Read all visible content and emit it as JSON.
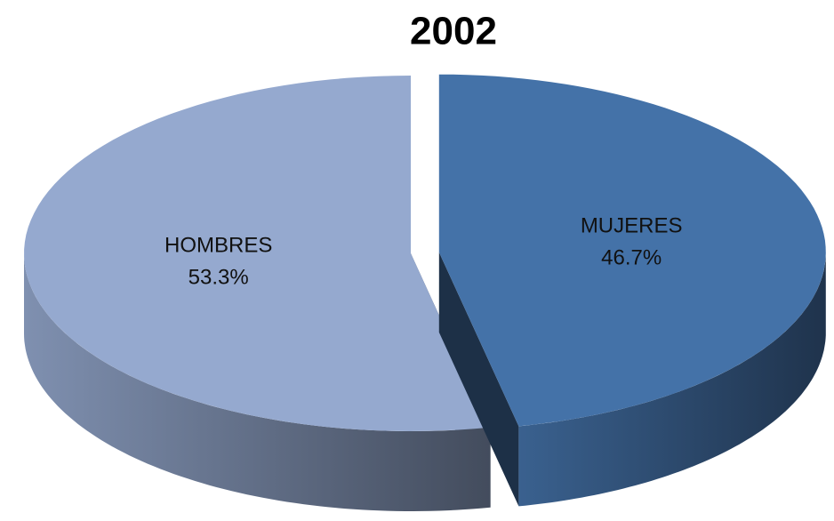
{
  "chart_data": {
    "type": "pie3d",
    "title": "2002",
    "categories": [
      "MUJERES",
      "HOMBRES"
    ],
    "values": [
      46.7,
      53.3
    ],
    "value_labels": [
      "46.7%",
      "53.3%"
    ],
    "colors": [
      "#4472a8",
      "#95a9cf"
    ]
  }
}
